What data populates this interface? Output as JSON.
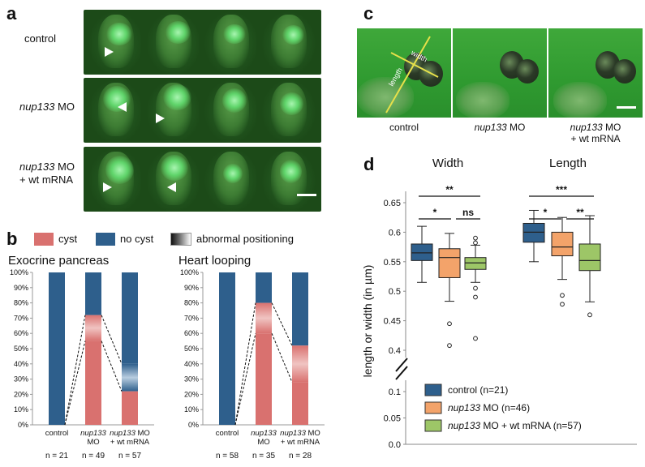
{
  "panels": {
    "a": "a",
    "b": "b",
    "c": "c",
    "d": "d"
  },
  "panel_a": {
    "rows": [
      {
        "label_italic": "",
        "label_rest": "control"
      },
      {
        "label_italic": "nup133",
        "label_rest": " MO"
      },
      {
        "label_italic": "nup133",
        "label_rest": " MO",
        "label_line2": "+ wt mRNA"
      }
    ]
  },
  "panel_b": {
    "legend": {
      "cyst": "cyst",
      "no_cyst": "no cyst",
      "abnormal": "abnormal positioning"
    },
    "colors": {
      "cyst": "#d9716f",
      "no_cyst": "#2e5f8c",
      "white": "#ffffff"
    },
    "charts": [
      {
        "title": "Exocrine pancreas",
        "categories": [
          {
            "line1": "control",
            "line2": "",
            "italic": false
          },
          {
            "line1": "nup133",
            "line2": "MO",
            "italic": true
          },
          {
            "line1": "nup133",
            "line1_rest": " MO",
            "line2": "+ wt mRNA",
            "italic": true
          }
        ],
        "n": [
          "n = 21",
          "n = 49",
          "n = 57"
        ]
      },
      {
        "title": "Heart looping",
        "categories": [
          {
            "line1": "control",
            "line2": "",
            "italic": false
          },
          {
            "line1": "nup133",
            "line2": "MO",
            "italic": true
          },
          {
            "line1": "nup133",
            "line1_rest": " MO",
            "line2": "+ wt mRNA",
            "italic": true
          }
        ],
        "n": [
          "n = 58",
          "n = 35",
          "n = 28"
        ]
      }
    ],
    "yticks": [
      "0%",
      "10%",
      "20%",
      "30%",
      "40%",
      "50%",
      "60%",
      "70%",
      "80%",
      "90%",
      "100%"
    ]
  },
  "panel_c": {
    "labels": [
      {
        "italic": "",
        "rest": "control",
        "line2": ""
      },
      {
        "italic": "nup133",
        "rest": " MO",
        "line2": ""
      },
      {
        "italic": "nup133",
        "rest": " MO",
        "line2": "+ wt mRNA"
      }
    ],
    "width_label": "width",
    "length_label": "length"
  },
  "panel_d": {
    "groups": [
      "Width",
      "Length"
    ],
    "ylabel": "length or width (in µm)",
    "yticks_upper": [
      "0.65",
      "0.6",
      "0.55",
      "0.5",
      "0.45",
      "0.4"
    ],
    "yticks_lower": [
      "0.1",
      "0.05",
      "0.0"
    ],
    "legend": [
      {
        "italic": "",
        "rest": "control (n=21)",
        "color": "#2e5f8c"
      },
      {
        "italic": "nup133",
        "rest": "  MO (n=46)",
        "color": "#f3a36a"
      },
      {
        "italic": "nup133",
        "rest": " MO + wt mRNA (n=57)",
        "color": "#9dc667"
      }
    ],
    "significance": {
      "width_top": "**",
      "width_a": "*",
      "width_b": "ns",
      "length_top": "***",
      "length_a": "*",
      "length_b": "**"
    }
  },
  "chart_data": [
    {
      "type": "bar",
      "title": "Exocrine pancreas",
      "categories": [
        "control",
        "nup133 MO",
        "nup133 MO + wt mRNA"
      ],
      "ylim": [
        0,
        100
      ],
      "series": [
        {
          "name": "cyst",
          "values": [
            0,
            55,
            22
          ]
        },
        {
          "name": "abnormal positioning",
          "values": [
            0,
            17,
            18
          ]
        },
        {
          "name": "no cyst",
          "values": [
            100,
            28,
            60
          ]
        }
      ],
      "n": [
        21,
        49,
        57
      ]
    },
    {
      "type": "bar",
      "title": "Heart looping",
      "categories": [
        "control",
        "nup133 MO",
        "nup133 MO + wt mRNA"
      ],
      "ylim": [
        0,
        100
      ],
      "series": [
        {
          "name": "cyst",
          "values": [
            0,
            60,
            28
          ]
        },
        {
          "name": "abnormal positioning",
          "values": [
            0,
            20,
            24
          ]
        },
        {
          "name": "no cyst",
          "values": [
            100,
            20,
            48
          ]
        }
      ],
      "n": [
        58,
        35,
        28
      ]
    },
    {
      "type": "box",
      "ylabel": "length or width (in µm)",
      "ylim": [
        0.0,
        0.67
      ],
      "groups": [
        "Width",
        "Length"
      ],
      "series": [
        {
          "name": "control (n=21)",
          "group": "Width",
          "min": 0.515,
          "q1": 0.552,
          "median": 0.565,
          "q3": 0.58,
          "max": 0.61,
          "outliers": []
        },
        {
          "name": "nup133 MO (n=46)",
          "group": "Width",
          "min": 0.483,
          "q1": 0.523,
          "median": 0.557,
          "q3": 0.572,
          "max": 0.598,
          "outliers": [
            0.445,
            0.408
          ]
        },
        {
          "name": "nup133 MO + wt mRNA (n=57)",
          "group": "Width",
          "min": 0.515,
          "q1": 0.537,
          "median": 0.548,
          "q3": 0.557,
          "max": 0.578,
          "outliers": [
            0.59,
            0.582,
            0.505,
            0.49,
            0.42
          ]
        },
        {
          "name": "control (n=21)",
          "group": "Length",
          "min": 0.55,
          "q1": 0.583,
          "median": 0.6,
          "q3": 0.615,
          "max": 0.637,
          "outliers": []
        },
        {
          "name": "nup133 MO (n=46)",
          "group": "Length",
          "min": 0.52,
          "q1": 0.56,
          "median": 0.575,
          "q3": 0.6,
          "max": 0.625,
          "outliers": [
            0.493,
            0.478
          ]
        },
        {
          "name": "nup133 MO + wt mRNA (n=57)",
          "group": "Length",
          "min": 0.482,
          "q1": 0.535,
          "median": 0.552,
          "q3": 0.58,
          "max": 0.628,
          "outliers": [
            0.46
          ]
        }
      ]
    }
  ]
}
